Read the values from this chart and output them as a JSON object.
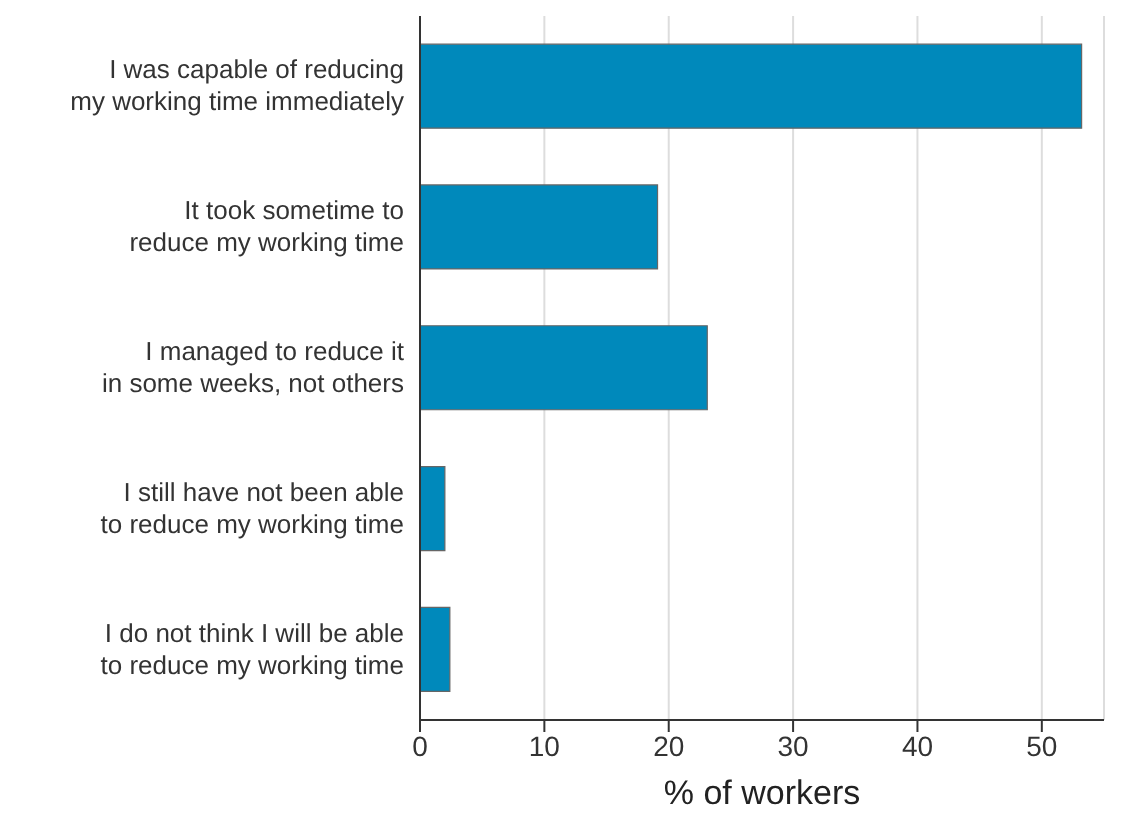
{
  "chart_data": {
    "type": "bar",
    "orientation": "horizontal",
    "xlabel": "% of workers",
    "categories": [
      "I was capable of reducing\nmy working time immediately",
      "It took sometime to\nreduce my working time",
      "I managed to reduce it\nin some weeks, not others",
      "I still have not been able\nto reduce my working time",
      "I do not think I will be able\nto reduce my working time"
    ],
    "values": [
      53.2,
      19.1,
      23.1,
      2.0,
      2.4
    ],
    "color": "#0089bb",
    "xlim": [
      0,
      55
    ],
    "xticks": [
      0,
      10,
      20,
      30,
      40,
      50
    ],
    "grid": "x"
  }
}
